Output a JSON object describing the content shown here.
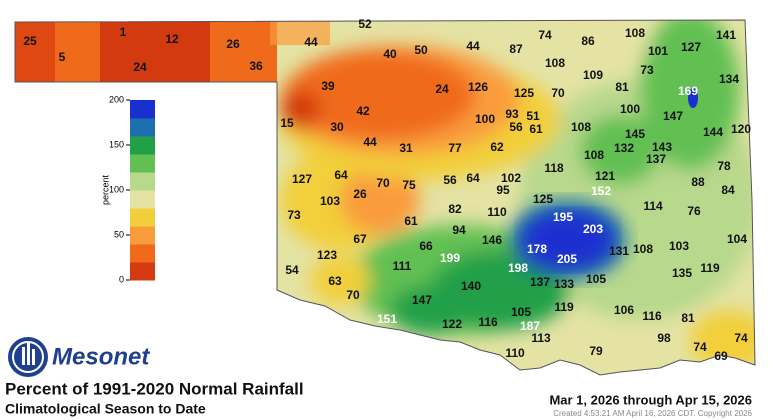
{
  "legend": {
    "label": "percent",
    "ticks": [
      0,
      50,
      100,
      150,
      200
    ],
    "colors": [
      "#d43a10",
      "#f06a1c",
      "#f99c3c",
      "#f2cf3a",
      "#e4e3a4",
      "#b8d88c",
      "#62c052",
      "#22a048",
      "#1d6fb0",
      "#1a2fd0"
    ]
  },
  "logo": "Mesonet",
  "title": "Percent of 1991-2020 Normal Rainfall",
  "subtitle": "Climatological Season to Date",
  "period": "Mar 1, 2026 through Apr 15, 2026",
  "created": "Created 4:53:21 AM April 16, 2026 CDT. Copyright 2026",
  "stations": [
    25,
    1,
    12,
    26,
    52,
    5,
    24,
    36,
    44,
    40,
    50,
    44,
    87,
    74,
    86,
    108,
    141,
    101,
    127,
    108,
    109,
    73,
    134,
    39,
    24,
    126,
    125,
    70,
    81,
    169,
    15,
    30,
    42,
    100,
    93,
    51,
    56,
    61,
    108,
    100,
    147,
    144,
    120,
    44,
    31,
    77,
    62,
    145,
    132,
    143,
    137,
    108,
    118,
    102,
    127,
    64,
    70,
    75,
    56,
    64,
    121,
    78,
    88,
    84,
    95,
    125,
    152,
    103,
    26,
    82,
    110,
    195,
    203,
    114,
    76,
    73,
    61,
    94,
    67,
    66,
    146,
    178,
    104,
    131,
    108,
    103,
    54,
    123,
    111,
    199,
    198,
    205,
    135,
    119,
    63,
    140,
    137,
    133,
    105,
    70,
    147,
    106,
    116,
    81,
    151,
    122,
    116,
    105,
    119,
    187,
    113,
    98,
    74,
    110,
    79,
    74,
    69
  ]
}
